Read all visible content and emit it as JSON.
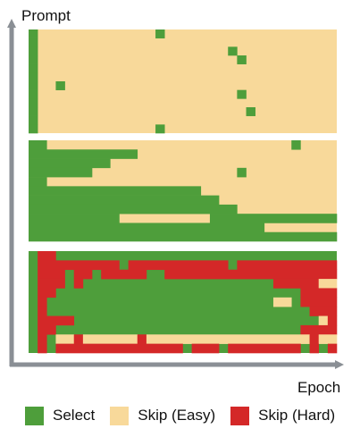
{
  "axes": {
    "y_label": "Prompt",
    "x_label": "Epoch",
    "axis_color": "#8a8f95"
  },
  "legend": [
    {
      "label": "Select",
      "color": "#4e9e3b"
    },
    {
      "label": "Skip (Easy)",
      "color": "#f8d99a"
    },
    {
      "label": "Skip (Hard)",
      "color": "#d42828"
    }
  ],
  "grid": {
    "columns": 34,
    "panels": [
      {
        "rows": 12,
        "background": "easy",
        "segments": [
          {
            "row": 0,
            "start": 0,
            "length": 1,
            "status": "select"
          },
          {
            "row": 1,
            "start": 0,
            "length": 1,
            "status": "select"
          },
          {
            "row": 2,
            "start": 0,
            "length": 1,
            "status": "select"
          },
          {
            "row": 3,
            "start": 0,
            "length": 1,
            "status": "select"
          },
          {
            "row": 4,
            "start": 0,
            "length": 1,
            "status": "select"
          },
          {
            "row": 5,
            "start": 0,
            "length": 1,
            "status": "select"
          },
          {
            "row": 6,
            "start": 0,
            "length": 1,
            "status": "select"
          },
          {
            "row": 7,
            "start": 0,
            "length": 1,
            "status": "select"
          },
          {
            "row": 8,
            "start": 0,
            "length": 1,
            "status": "select"
          },
          {
            "row": 9,
            "start": 0,
            "length": 1,
            "status": "select"
          },
          {
            "row": 10,
            "start": 0,
            "length": 1,
            "status": "select"
          },
          {
            "row": 11,
            "start": 0,
            "length": 1,
            "status": "select"
          },
          {
            "row": 0,
            "start": 14,
            "length": 1,
            "status": "select"
          },
          {
            "row": 2,
            "start": 22,
            "length": 1,
            "status": "select"
          },
          {
            "row": 3,
            "start": 23,
            "length": 1,
            "status": "select"
          },
          {
            "row": 6,
            "start": 3,
            "length": 1,
            "status": "select"
          },
          {
            "row": 7,
            "start": 23,
            "length": 1,
            "status": "select"
          },
          {
            "row": 9,
            "start": 24,
            "length": 1,
            "status": "select"
          },
          {
            "row": 11,
            "start": 14,
            "length": 1,
            "status": "select"
          }
        ]
      },
      {
        "rows": 11,
        "background": "easy",
        "segments": [
          {
            "row": 0,
            "start": 0,
            "length": 2,
            "status": "select"
          },
          {
            "row": 0,
            "start": 29,
            "length": 1,
            "status": "select"
          },
          {
            "row": 1,
            "start": 0,
            "length": 12,
            "status": "select"
          },
          {
            "row": 2,
            "start": 0,
            "length": 9,
            "status": "select"
          },
          {
            "row": 3,
            "start": 0,
            "length": 7,
            "status": "select"
          },
          {
            "row": 3,
            "start": 23,
            "length": 1,
            "status": "select"
          },
          {
            "row": 4,
            "start": 0,
            "length": 2,
            "status": "select"
          },
          {
            "row": 5,
            "start": 0,
            "length": 19,
            "status": "select"
          },
          {
            "row": 6,
            "start": 0,
            "length": 21,
            "status": "select"
          },
          {
            "row": 7,
            "start": 0,
            "length": 23,
            "status": "select"
          },
          {
            "row": 8,
            "start": 0,
            "length": 10,
            "status": "select"
          },
          {
            "row": 8,
            "start": 20,
            "length": 14,
            "status": "select"
          },
          {
            "row": 9,
            "start": 0,
            "length": 26,
            "status": "select"
          },
          {
            "row": 10,
            "start": 0,
            "length": 34,
            "status": "select"
          }
        ]
      },
      {
        "rows": 11,
        "background": "select",
        "segments": [
          {
            "row": 0,
            "start": 1,
            "length": 2,
            "status": "hard"
          },
          {
            "row": 1,
            "start": 1,
            "length": 9,
            "status": "hard"
          },
          {
            "row": 1,
            "start": 11,
            "length": 11,
            "status": "hard"
          },
          {
            "row": 1,
            "start": 23,
            "length": 11,
            "status": "hard"
          },
          {
            "row": 2,
            "start": 1,
            "length": 3,
            "status": "hard"
          },
          {
            "row": 2,
            "start": 5,
            "length": 2,
            "status": "hard"
          },
          {
            "row": 2,
            "start": 8,
            "length": 5,
            "status": "hard"
          },
          {
            "row": 2,
            "start": 15,
            "length": 19,
            "status": "hard"
          },
          {
            "row": 3,
            "start": 1,
            "length": 3,
            "status": "hard"
          },
          {
            "row": 3,
            "start": 5,
            "length": 1,
            "status": "hard"
          },
          {
            "row": 3,
            "start": 27,
            "length": 5,
            "status": "hard"
          },
          {
            "row": 3,
            "start": 32,
            "length": 2,
            "status": "easy"
          },
          {
            "row": 4,
            "start": 1,
            "length": 2,
            "status": "hard"
          },
          {
            "row": 4,
            "start": 30,
            "length": 4,
            "status": "hard"
          },
          {
            "row": 5,
            "start": 1,
            "length": 1,
            "status": "hard"
          },
          {
            "row": 5,
            "start": 27,
            "length": 2,
            "status": "easy"
          },
          {
            "row": 5,
            "start": 30,
            "length": 4,
            "status": "hard"
          },
          {
            "row": 6,
            "start": 1,
            "length": 1,
            "status": "hard"
          },
          {
            "row": 6,
            "start": 31,
            "length": 3,
            "status": "hard"
          },
          {
            "row": 7,
            "start": 1,
            "length": 4,
            "status": "hard"
          },
          {
            "row": 7,
            "start": 32,
            "length": 1,
            "status": "easy"
          },
          {
            "row": 7,
            "start": 33,
            "length": 1,
            "status": "hard"
          },
          {
            "row": 8,
            "start": 1,
            "length": 2,
            "status": "hard"
          },
          {
            "row": 8,
            "start": 30,
            "length": 4,
            "status": "hard"
          },
          {
            "row": 9,
            "start": 1,
            "length": 1,
            "status": "hard"
          },
          {
            "row": 9,
            "start": 3,
            "length": 2,
            "status": "easy"
          },
          {
            "row": 9,
            "start": 5,
            "length": 1,
            "status": "hard"
          },
          {
            "row": 9,
            "start": 6,
            "length": 6,
            "status": "easy"
          },
          {
            "row": 9,
            "start": 12,
            "length": 1,
            "status": "hard"
          },
          {
            "row": 9,
            "start": 13,
            "length": 18,
            "status": "easy"
          },
          {
            "row": 9,
            "start": 31,
            "length": 1,
            "status": "hard"
          },
          {
            "row": 9,
            "start": 32,
            "length": 2,
            "status": "easy"
          },
          {
            "row": 10,
            "start": 1,
            "length": 1,
            "status": "hard"
          },
          {
            "row": 10,
            "start": 3,
            "length": 14,
            "status": "hard"
          },
          {
            "row": 10,
            "start": 18,
            "length": 3,
            "status": "hard"
          },
          {
            "row": 10,
            "start": 22,
            "length": 8,
            "status": "hard"
          },
          {
            "row": 10,
            "start": 31,
            "length": 1,
            "status": "hard"
          },
          {
            "row": 10,
            "start": 33,
            "length": 1,
            "status": "hard"
          }
        ]
      }
    ]
  }
}
